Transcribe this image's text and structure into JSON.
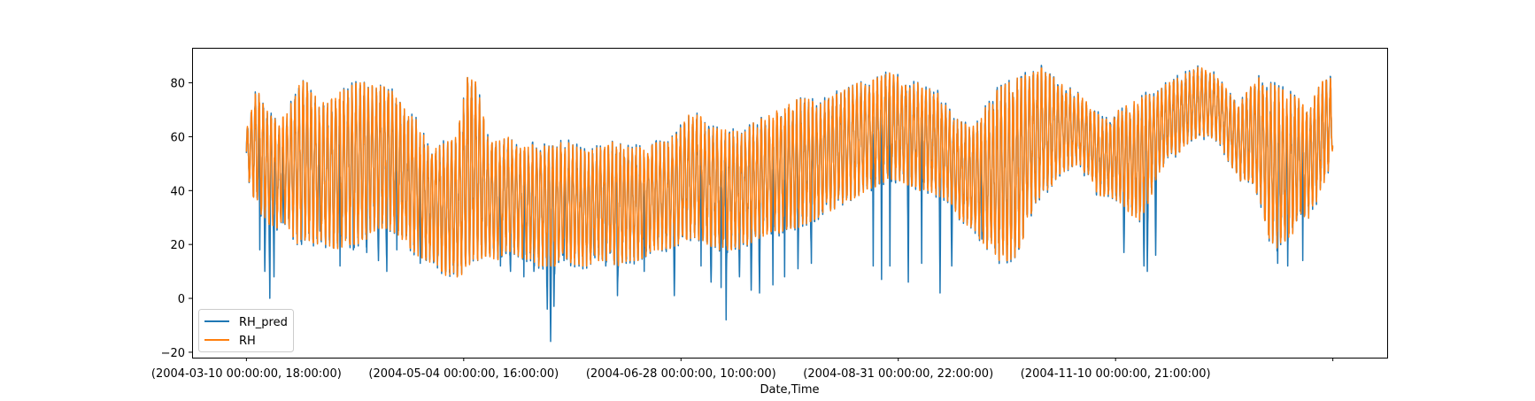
{
  "chart_data": {
    "type": "line",
    "title": "",
    "xlabel": "Date,Time",
    "ylabel": "",
    "grid": false,
    "legend_position": "lower-left",
    "ylim": [
      -22,
      93
    ],
    "x_tick_labels": [
      "(2004-03-10 00:00:00, 18:00:00)",
      "(2004-05-04 00:00:00, 16:00:00)",
      "(2004-06-28 00:00:00, 10:00:00)",
      "(2004-08-31 00:00:00, 22:00:00)",
      "(2004-11-10 00:00:00, 21:00:00)",
      ""
    ],
    "x_tick_index": [
      0,
      1300,
      2600,
      3900,
      5200,
      6500
    ],
    "x_range": [
      -325,
      6825
    ],
    "y_ticks": [
      -20,
      0,
      20,
      40,
      60,
      80
    ],
    "series": [
      {
        "name": "RH_pred",
        "color": "#1f77b4"
      },
      {
        "name": "RH",
        "color": "#ff7f0e"
      }
    ],
    "n_points": 6500,
    "sampling_step": 1,
    "sample_index": [
      0,
      60,
      120,
      180,
      240,
      300,
      360,
      420,
      480,
      540,
      600,
      660,
      720,
      780,
      840,
      900,
      960,
      1020,
      1080,
      1140,
      1200,
      1260,
      1320,
      1380,
      1440,
      1500,
      1560,
      1620,
      1680,
      1740,
      1800,
      1860,
      1920,
      1980,
      2040,
      2100,
      2160,
      2220,
      2280,
      2340,
      2400,
      2460,
      2520,
      2580,
      2640,
      2700,
      2760,
      2820,
      2880,
      2940,
      3000,
      3060,
      3120,
      3180,
      3240,
      3300,
      3360,
      3420,
      3480,
      3540,
      3600,
      3660,
      3720,
      3780,
      3840,
      3900,
      3960,
      4020,
      4080,
      4140,
      4200,
      4260,
      4320,
      4380,
      4440,
      4500,
      4560,
      4620,
      4680,
      4740,
      4800,
      4860,
      4920,
      4980,
      5040,
      5100,
      5160,
      5220,
      5280,
      5340,
      5400,
      5460,
      5520,
      5580,
      5640,
      5700,
      5760,
      5820,
      5880,
      5940,
      6000,
      6060,
      6120,
      6180,
      6240,
      6300,
      6360,
      6420,
      6499
    ],
    "rh_upper": [
      62,
      80,
      70,
      66,
      68,
      78,
      82,
      74,
      72,
      76,
      78,
      80,
      80,
      78,
      80,
      74,
      70,
      66,
      58,
      56,
      58,
      60,
      82,
      80,
      60,
      58,
      60,
      58,
      56,
      58,
      56,
      58,
      58,
      56,
      54,
      56,
      58,
      58,
      56,
      56,
      56,
      58,
      58,
      62,
      68,
      68,
      66,
      64,
      62,
      62,
      64,
      66,
      68,
      70,
      72,
      74,
      74,
      72,
      74,
      76,
      78,
      80,
      80,
      82,
      84,
      82,
      80,
      80,
      78,
      76,
      70,
      66,
      64,
      68,
      72,
      78,
      80,
      82,
      84,
      86,
      84,
      80,
      78,
      76,
      72,
      68,
      66,
      70,
      72,
      74,
      76,
      78,
      80,
      82,
      84,
      86,
      84,
      82,
      76,
      72,
      78,
      82,
      80,
      78,
      76,
      74,
      70,
      80,
      82,
      72
    ],
    "rh_lower": [
      46,
      34,
      28,
      26,
      28,
      20,
      22,
      20,
      20,
      18,
      20,
      20,
      22,
      26,
      26,
      24,
      20,
      16,
      14,
      12,
      8,
      6,
      12,
      14,
      16,
      14,
      18,
      16,
      14,
      12,
      12,
      12,
      14,
      12,
      12,
      14,
      14,
      12,
      14,
      14,
      16,
      18,
      18,
      20,
      22,
      22,
      20,
      18,
      18,
      18,
      20,
      22,
      24,
      24,
      26,
      26,
      28,
      30,
      32,
      34,
      36,
      38,
      40,
      42,
      44,
      44,
      42,
      40,
      40,
      38,
      36,
      30,
      26,
      22,
      18,
      14,
      14,
      16,
      30,
      36,
      40,
      46,
      48,
      50,
      44,
      38,
      38,
      36,
      32,
      28,
      36,
      46,
      52,
      54,
      58,
      60,
      60,
      58,
      50,
      44,
      42,
      38,
      20,
      18,
      22,
      28,
      30,
      38,
      52,
      60
    ],
    "pred_low": [
      {
        "i": 80,
        "v": 18
      },
      {
        "i": 110,
        "v": 10
      },
      {
        "i": 140,
        "v": 0
      },
      {
        "i": 165,
        "v": 8
      },
      {
        "i": 220,
        "v": 28
      },
      {
        "i": 330,
        "v": 20
      },
      {
        "i": 440,
        "v": 25
      },
      {
        "i": 560,
        "v": 12
      },
      {
        "i": 640,
        "v": 18
      },
      {
        "i": 720,
        "v": 17
      },
      {
        "i": 790,
        "v": 14
      },
      {
        "i": 840,
        "v": 10
      },
      {
        "i": 900,
        "v": 18
      },
      {
        "i": 1040,
        "v": 13
      },
      {
        "i": 1120,
        "v": 17
      },
      {
        "i": 1260,
        "v": 22
      },
      {
        "i": 1520,
        "v": 12
      },
      {
        "i": 1580,
        "v": 10
      },
      {
        "i": 1660,
        "v": 8
      },
      {
        "i": 1720,
        "v": 10
      },
      {
        "i": 1800,
        "v": -4
      },
      {
        "i": 1820,
        "v": -16
      },
      {
        "i": 1840,
        "v": -3
      },
      {
        "i": 1900,
        "v": 14
      },
      {
        "i": 2080,
        "v": 16
      },
      {
        "i": 2150,
        "v": 12
      },
      {
        "i": 2220,
        "v": 1
      },
      {
        "i": 2380,
        "v": 10
      },
      {
        "i": 2560,
        "v": 1
      },
      {
        "i": 2720,
        "v": 12
      },
      {
        "i": 2780,
        "v": 6
      },
      {
        "i": 2840,
        "v": 4
      },
      {
        "i": 2870,
        "v": -8
      },
      {
        "i": 2950,
        "v": 8
      },
      {
        "i": 3020,
        "v": 3
      },
      {
        "i": 3070,
        "v": 2
      },
      {
        "i": 3150,
        "v": 5
      },
      {
        "i": 3220,
        "v": 8
      },
      {
        "i": 3300,
        "v": 11
      },
      {
        "i": 3380,
        "v": 13
      },
      {
        "i": 3750,
        "v": 12
      },
      {
        "i": 3800,
        "v": 7
      },
      {
        "i": 3850,
        "v": 12
      },
      {
        "i": 3960,
        "v": 6
      },
      {
        "i": 4040,
        "v": 13
      },
      {
        "i": 4150,
        "v": 2
      },
      {
        "i": 4220,
        "v": 12
      },
      {
        "i": 4400,
        "v": 22
      },
      {
        "i": 4480,
        "v": 24
      },
      {
        "i": 5250,
        "v": 17
      },
      {
        "i": 5370,
        "v": 12
      },
      {
        "i": 5390,
        "v": 10
      },
      {
        "i": 5440,
        "v": 16
      },
      {
        "i": 6170,
        "v": 13
      },
      {
        "i": 6230,
        "v": 12
      },
      {
        "i": 6320,
        "v": 14
      }
    ]
  }
}
